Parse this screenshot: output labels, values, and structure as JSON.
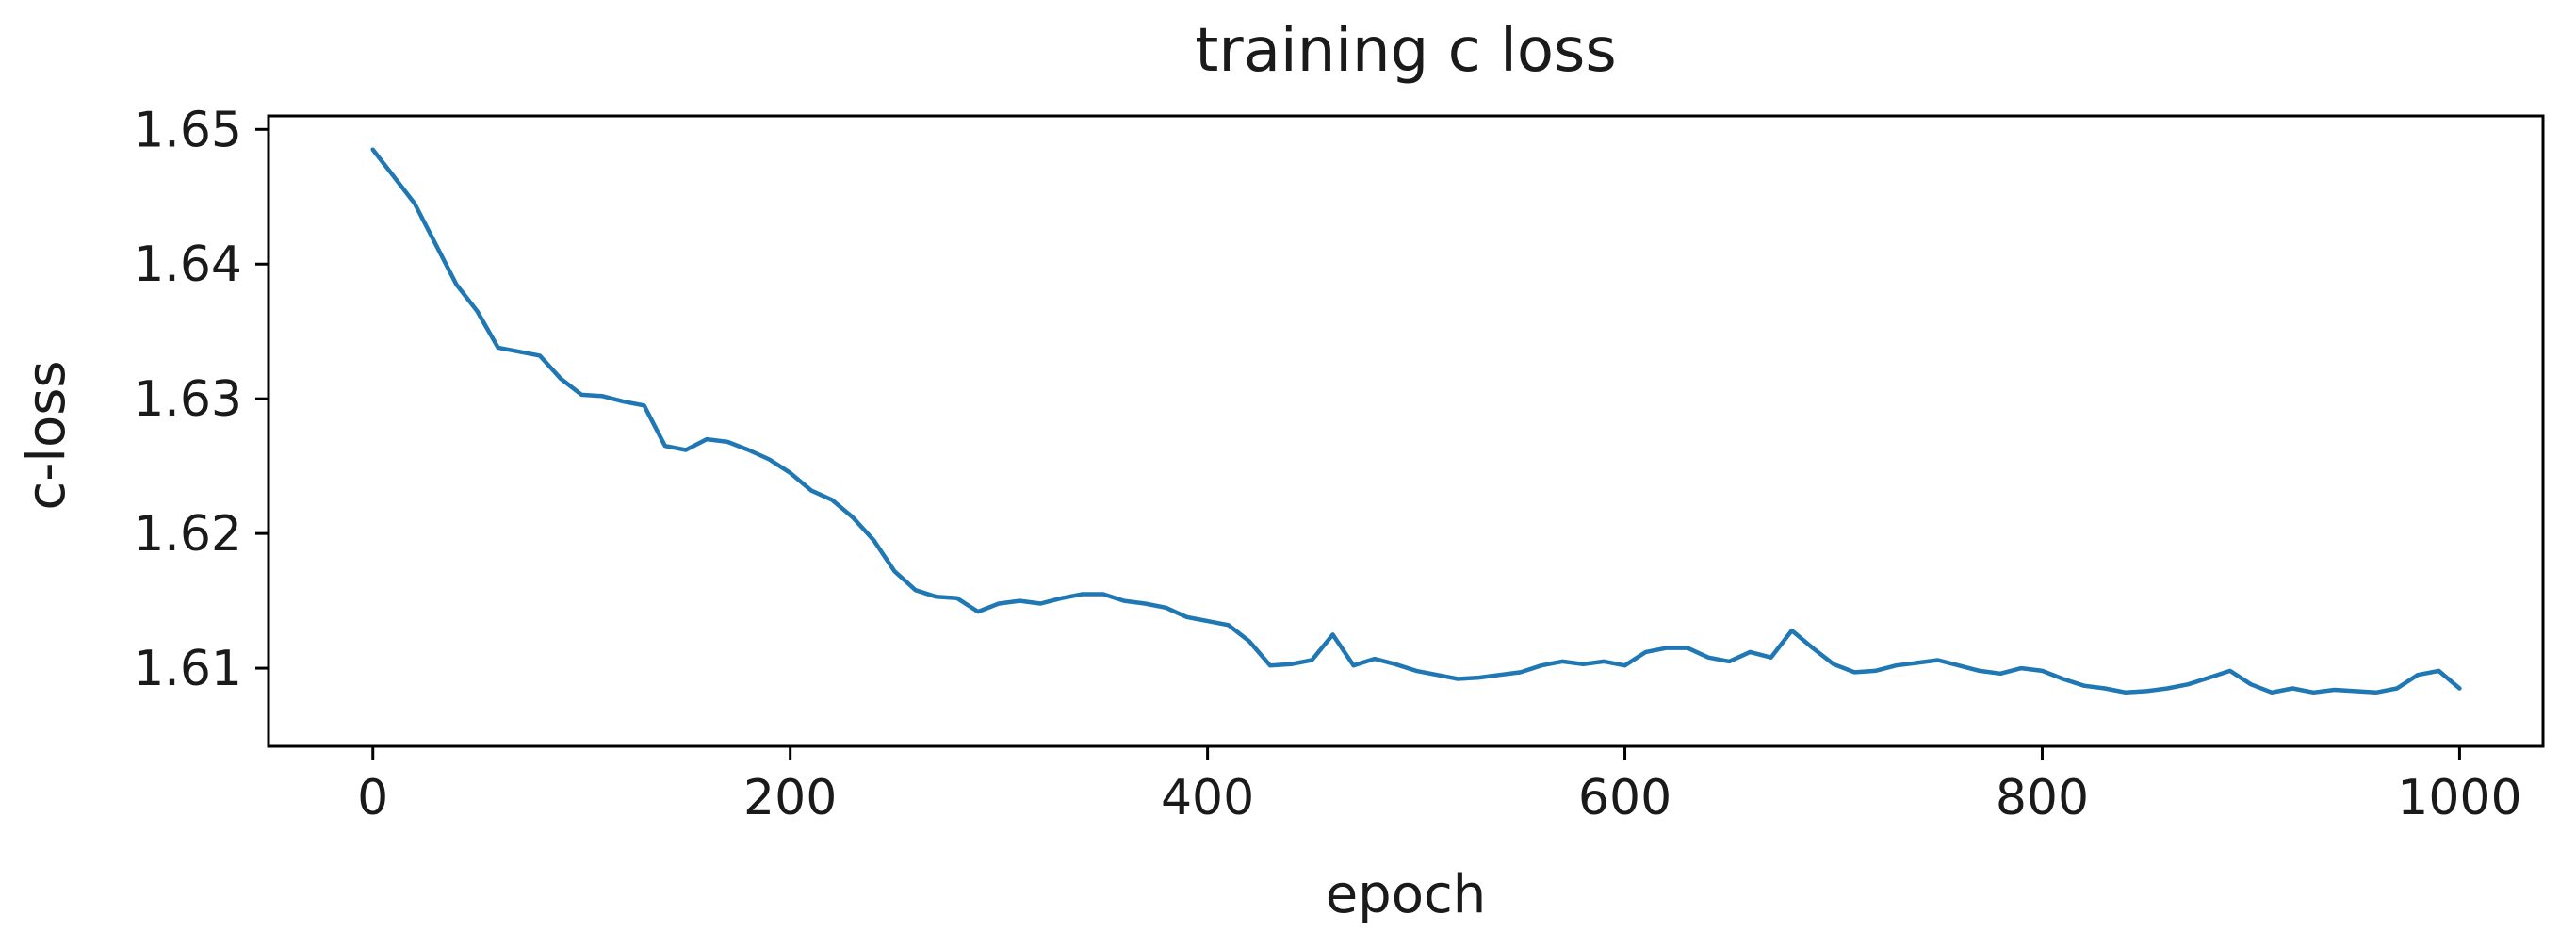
{
  "chart_data": {
    "type": "line",
    "title": "training c loss",
    "xlabel": "epoch",
    "ylabel": "c-loss",
    "xlim": [
      -50,
      1040
    ],
    "ylim": [
      1.6042,
      1.651
    ],
    "grid": false,
    "x_ticks": [
      0,
      200,
      400,
      600,
      800,
      1000
    ],
    "y_ticks": [
      1.61,
      1.62,
      1.63,
      1.64,
      1.65
    ],
    "x_tick_labels": [
      "0",
      "200",
      "400",
      "600",
      "800",
      "1000"
    ],
    "y_tick_labels": [
      "1.61",
      "1.62",
      "1.63",
      "1.64",
      "1.65"
    ],
    "series": [
      {
        "color": "#1f77b4",
        "x": [
          0,
          10,
          20,
          30,
          40,
          50,
          60,
          70,
          80,
          90,
          100,
          110,
          120,
          130,
          140,
          150,
          160,
          170,
          180,
          190,
          200,
          210,
          220,
          230,
          240,
          250,
          260,
          270,
          280,
          290,
          300,
          310,
          320,
          330,
          340,
          350,
          360,
          370,
          380,
          390,
          400,
          410,
          420,
          430,
          440,
          450,
          460,
          470,
          480,
          490,
          500,
          510,
          520,
          530,
          540,
          550,
          560,
          570,
          580,
          590,
          600,
          610,
          620,
          630,
          640,
          650,
          660,
          670,
          680,
          690,
          700,
          710,
          720,
          730,
          740,
          750,
          760,
          770,
          780,
          790,
          800,
          810,
          820,
          830,
          840,
          850,
          860,
          870,
          880,
          890,
          900,
          910,
          920,
          930,
          940,
          950,
          960,
          970,
          980,
          990,
          1000
        ],
        "y": [
          1.6485,
          1.6465,
          1.6445,
          1.6415,
          1.6385,
          1.6365,
          1.6338,
          1.6335,
          1.6332,
          1.6315,
          1.6303,
          1.6302,
          1.6298,
          1.6295,
          1.6265,
          1.6262,
          1.627,
          1.6268,
          1.6262,
          1.6255,
          1.6245,
          1.6232,
          1.6225,
          1.6212,
          1.6195,
          1.6172,
          1.6158,
          1.6153,
          1.6152,
          1.6142,
          1.6148,
          1.615,
          1.6148,
          1.6152,
          1.6155,
          1.6155,
          1.615,
          1.6148,
          1.6145,
          1.6138,
          1.6135,
          1.6132,
          1.612,
          1.6102,
          1.6103,
          1.6106,
          1.6125,
          1.6102,
          1.6107,
          1.6103,
          1.6098,
          1.6095,
          1.6092,
          1.6093,
          1.6095,
          1.6097,
          1.6102,
          1.6105,
          1.6103,
          1.6105,
          1.6102,
          1.6112,
          1.6115,
          1.6115,
          1.6108,
          1.6105,
          1.6112,
          1.6108,
          1.6128,
          1.6115,
          1.6103,
          1.6097,
          1.6098,
          1.6102,
          1.6104,
          1.6106,
          1.6102,
          1.6098,
          1.6096,
          1.61,
          1.6098,
          1.6092,
          1.6087,
          1.6085,
          1.6082,
          1.6083,
          1.6085,
          1.6088,
          1.6093,
          1.6098,
          1.6088,
          1.6082,
          1.6085,
          1.6082,
          1.6084,
          1.6083,
          1.6082,
          1.6085,
          1.6095,
          1.6098,
          1.6085
        ]
      }
    ]
  }
}
